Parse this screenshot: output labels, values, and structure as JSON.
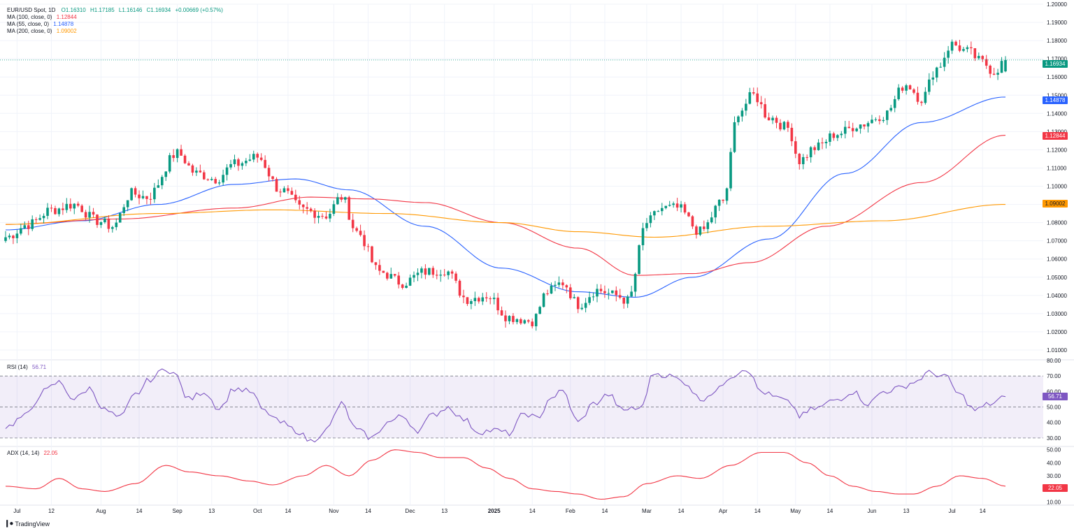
{
  "header": {
    "symbol": "EUR/USD Spot, 1D",
    "ohlc": {
      "o": "O1.16310",
      "h": "H1.17185",
      "l": "L1.16146",
      "c": "C1.16934",
      "chg": "+0.00669 (+0.57%)"
    }
  },
  "legend": {
    "ma100": {
      "label": "MA (100, close, 0)",
      "value": "1.12844",
      "color": "#f23645"
    },
    "ma55": {
      "label": "MA (55, close, 0)",
      "value": "1.14878",
      "color": "#2962ff"
    },
    "ma200": {
      "label": "MA (200, close, 0)",
      "value": "1.09002",
      "color": "#ff9800"
    },
    "rsi": {
      "label": "RSI (14)",
      "value": "56.71",
      "color": "#7e57c2"
    },
    "adx": {
      "label": "ADX (14, 14)",
      "value": "22.05",
      "color": "#f23645"
    }
  },
  "price_tags": {
    "last": {
      "text": "1.16934",
      "color": "#089981"
    },
    "ma55": {
      "text": "1.14878",
      "color": "#2962ff"
    },
    "ma100": {
      "text": "1.12844",
      "color": "#f23645"
    },
    "ma200": {
      "text": "1.09002",
      "color": "#ff9800"
    },
    "rsi": {
      "text": "56.71",
      "color": "#7e57c2"
    },
    "adx": {
      "text": "22.05",
      "color": "#f23645"
    }
  },
  "branding": {
    "name": "TradingView"
  },
  "chart_data": {
    "type": "candlestick",
    "title": "EUR/USD Spot, 1D",
    "price_axis": {
      "ticks": [
        "1.20000",
        "1.19000",
        "1.18000",
        "1.17000",
        "1.16000",
        "1.15000",
        "1.14000",
        "1.13000",
        "1.12000",
        "1.11000",
        "1.10000",
        "1.09000",
        "1.08000",
        "1.07000",
        "1.06000",
        "1.05000",
        "1.04000",
        "1.03000",
        "1.02000",
        "1.01000"
      ],
      "ylim": [
        1.005,
        1.2
      ]
    },
    "time_axis": {
      "labels": [
        {
          "text": "Jul",
          "bold": false
        },
        {
          "text": "12",
          "bold": false
        },
        {
          "text": "Aug",
          "bold": false
        },
        {
          "text": "14",
          "bold": false
        },
        {
          "text": "Sep",
          "bold": false
        },
        {
          "text": "13",
          "bold": false
        },
        {
          "text": "Oct",
          "bold": false
        },
        {
          "text": "14",
          "bold": false
        },
        {
          "text": "Nov",
          "bold": false
        },
        {
          "text": "14",
          "bold": false
        },
        {
          "text": "Dec",
          "bold": false
        },
        {
          "text": "13",
          "bold": false
        },
        {
          "text": "2025",
          "bold": true
        },
        {
          "text": "14",
          "bold": false
        },
        {
          "text": "Feb",
          "bold": false
        },
        {
          "text": "14",
          "bold": false
        },
        {
          "text": "Mar",
          "bold": false
        },
        {
          "text": "14",
          "bold": false
        },
        {
          "text": "Apr",
          "bold": false
        },
        {
          "text": "14",
          "bold": false
        },
        {
          "text": "May",
          "bold": false
        },
        {
          "text": "14",
          "bold": false
        },
        {
          "text": "Jun",
          "bold": false
        },
        {
          "text": "13",
          "bold": false
        },
        {
          "text": "Jul",
          "bold": false
        },
        {
          "text": "14",
          "bold": false
        }
      ],
      "label_bar_index": [
        3,
        12,
        25,
        35,
        45,
        54,
        66,
        74,
        86,
        95,
        106,
        115,
        128,
        138,
        148,
        157,
        168,
        177,
        188,
        197,
        207,
        216,
        227,
        236,
        248,
        256
      ]
    },
    "close_anchors": [
      [
        0,
        1.072
      ],
      [
        6,
        1.079
      ],
      [
        12,
        1.087
      ],
      [
        18,
        1.09
      ],
      [
        24,
        1.081
      ],
      [
        28,
        1.078
      ],
      [
        33,
        1.096
      ],
      [
        37,
        1.094
      ],
      [
        45,
        1.118
      ],
      [
        50,
        1.107
      ],
      [
        55,
        1.104
      ],
      [
        60,
        1.112
      ],
      [
        66,
        1.116
      ],
      [
        72,
        1.098
      ],
      [
        78,
        1.087
      ],
      [
        84,
        1.084
      ],
      [
        88,
        1.094
      ],
      [
        92,
        1.075
      ],
      [
        98,
        1.053
      ],
      [
        104,
        1.047
      ],
      [
        110,
        1.053
      ],
      [
        115,
        1.054
      ],
      [
        121,
        1.038
      ],
      [
        126,
        1.04
      ],
      [
        132,
        1.028
      ],
      [
        138,
        1.026
      ],
      [
        142,
        1.042
      ],
      [
        146,
        1.047
      ],
      [
        150,
        1.035
      ],
      [
        155,
        1.043
      ],
      [
        160,
        1.04
      ],
      [
        163,
        1.037
      ],
      [
        168,
        1.08
      ],
      [
        172,
        1.088
      ],
      [
        176,
        1.088
      ],
      [
        182,
        1.075
      ],
      [
        188,
        1.092
      ],
      [
        192,
        1.141
      ],
      [
        196,
        1.15
      ],
      [
        200,
        1.138
      ],
      [
        205,
        1.132
      ],
      [
        208,
        1.114
      ],
      [
        212,
        1.121
      ],
      [
        218,
        1.129
      ],
      [
        224,
        1.134
      ],
      [
        230,
        1.139
      ],
      [
        236,
        1.156
      ],
      [
        240,
        1.148
      ],
      [
        244,
        1.165
      ],
      [
        248,
        1.178
      ],
      [
        252,
        1.174
      ],
      [
        256,
        1.168
      ],
      [
        259,
        1.163
      ],
      [
        262,
        1.169
      ]
    ],
    "bars": 263,
    "last_close": 1.16934,
    "ma": [
      {
        "name": "MA (55, close, 0)",
        "color": "#2962ff",
        "points": [
          [
            0,
            1.076
          ],
          [
            20,
            1.081
          ],
          [
            40,
            1.09
          ],
          [
            60,
            1.101
          ],
          [
            76,
            1.104
          ],
          [
            90,
            1.098
          ],
          [
            110,
            1.078
          ],
          [
            130,
            1.055
          ],
          [
            150,
            1.042
          ],
          [
            165,
            1.039
          ],
          [
            180,
            1.05
          ],
          [
            200,
            1.071
          ],
          [
            220,
            1.107
          ],
          [
            240,
            1.135
          ],
          [
            262,
            1.149
          ]
        ]
      },
      {
        "name": "MA (100, close, 0)",
        "color": "#f23645",
        "points": [
          [
            0,
            1.079
          ],
          [
            30,
            1.082
          ],
          [
            60,
            1.088
          ],
          [
            80,
            1.094
          ],
          [
            95,
            1.093
          ],
          [
            110,
            1.091
          ],
          [
            130,
            1.08
          ],
          [
            150,
            1.066
          ],
          [
            165,
            1.051
          ],
          [
            180,
            1.052
          ],
          [
            195,
            1.058
          ],
          [
            215,
            1.078
          ],
          [
            240,
            1.102
          ],
          [
            262,
            1.128
          ]
        ]
      },
      {
        "name": "MA (200, close, 0)",
        "color": "#ff9800",
        "points": [
          [
            0,
            1.079
          ],
          [
            40,
            1.085
          ],
          [
            70,
            1.087
          ],
          [
            100,
            1.085
          ],
          [
            130,
            1.08
          ],
          [
            150,
            1.075
          ],
          [
            170,
            1.072
          ],
          [
            200,
            1.078
          ],
          [
            230,
            1.081
          ],
          [
            262,
            1.09
          ]
        ]
      }
    ],
    "rsi": {
      "name": "RSI (14)",
      "ticks": [
        "80.00",
        "70.00",
        "60.00",
        "50.00",
        "40.00",
        "30.00"
      ],
      "ylim": [
        25,
        80
      ],
      "bands": [
        70,
        50,
        30
      ],
      "points": [
        [
          0,
          37
        ],
        [
          5,
          44
        ],
        [
          10,
          60
        ],
        [
          14,
          66
        ],
        [
          18,
          55
        ],
        [
          22,
          62
        ],
        [
          26,
          48
        ],
        [
          30,
          43
        ],
        [
          34,
          58
        ],
        [
          38,
          68
        ],
        [
          42,
          75
        ],
        [
          44,
          72
        ],
        [
          48,
          55
        ],
        [
          52,
          60
        ],
        [
          56,
          49
        ],
        [
          60,
          62
        ],
        [
          64,
          60
        ],
        [
          68,
          47
        ],
        [
          72,
          40
        ],
        [
          76,
          35
        ],
        [
          80,
          28
        ],
        [
          84,
          35
        ],
        [
          88,
          52
        ],
        [
          92,
          35
        ],
        [
          96,
          30
        ],
        [
          100,
          40
        ],
        [
          104,
          44
        ],
        [
          108,
          35
        ],
        [
          112,
          45
        ],
        [
          116,
          50
        ],
        [
          120,
          42
        ],
        [
          124,
          34
        ],
        [
          128,
          35
        ],
        [
          132,
          33
        ],
        [
          136,
          46
        ],
        [
          140,
          42
        ],
        [
          142,
          55
        ],
        [
          146,
          60
        ],
        [
          150,
          40
        ],
        [
          154,
          52
        ],
        [
          158,
          58
        ],
        [
          162,
          47
        ],
        [
          164,
          50
        ],
        [
          166,
          48
        ],
        [
          170,
          72
        ],
        [
          174,
          70
        ],
        [
          178,
          66
        ],
        [
          182,
          55
        ],
        [
          186,
          60
        ],
        [
          190,
          70
        ],
        [
          194,
          75
        ],
        [
          198,
          60
        ],
        [
          202,
          56
        ],
        [
          206,
          52
        ],
        [
          208,
          44
        ],
        [
          212,
          49
        ],
        [
          218,
          55
        ],
        [
          222,
          60
        ],
        [
          226,
          52
        ],
        [
          230,
          60
        ],
        [
          234,
          62
        ],
        [
          238,
          66
        ],
        [
          242,
          72
        ],
        [
          246,
          70
        ],
        [
          250,
          58
        ],
        [
          254,
          48
        ],
        [
          258,
          52
        ],
        [
          262,
          56.71
        ]
      ]
    },
    "adx": {
      "name": "ADX (14, 14)",
      "ticks": [
        "50.00",
        "40.00",
        "30.00",
        "20.00",
        "10.00"
      ],
      "ylim": [
        8,
        52
      ],
      "points": [
        [
          0,
          22
        ],
        [
          8,
          20
        ],
        [
          14,
          28
        ],
        [
          20,
          20
        ],
        [
          26,
          18
        ],
        [
          34,
          24
        ],
        [
          42,
          38
        ],
        [
          48,
          33
        ],
        [
          56,
          30
        ],
        [
          64,
          26
        ],
        [
          70,
          23
        ],
        [
          78,
          30
        ],
        [
          84,
          38
        ],
        [
          90,
          30
        ],
        [
          96,
          42
        ],
        [
          102,
          50
        ],
        [
          108,
          48
        ],
        [
          114,
          44
        ],
        [
          120,
          44
        ],
        [
          126,
          36
        ],
        [
          132,
          28
        ],
        [
          138,
          20
        ],
        [
          144,
          18
        ],
        [
          150,
          16
        ],
        [
          156,
          12
        ],
        [
          162,
          14
        ],
        [
          168,
          24
        ],
        [
          176,
          30
        ],
        [
          182,
          28
        ],
        [
          190,
          38
        ],
        [
          198,
          48
        ],
        [
          204,
          48
        ],
        [
          210,
          40
        ],
        [
          216,
          30
        ],
        [
          222,
          22
        ],
        [
          228,
          18
        ],
        [
          234,
          16
        ],
        [
          238,
          16
        ],
        [
          244,
          22
        ],
        [
          250,
          30
        ],
        [
          256,
          28
        ],
        [
          262,
          22.05
        ]
      ]
    }
  }
}
